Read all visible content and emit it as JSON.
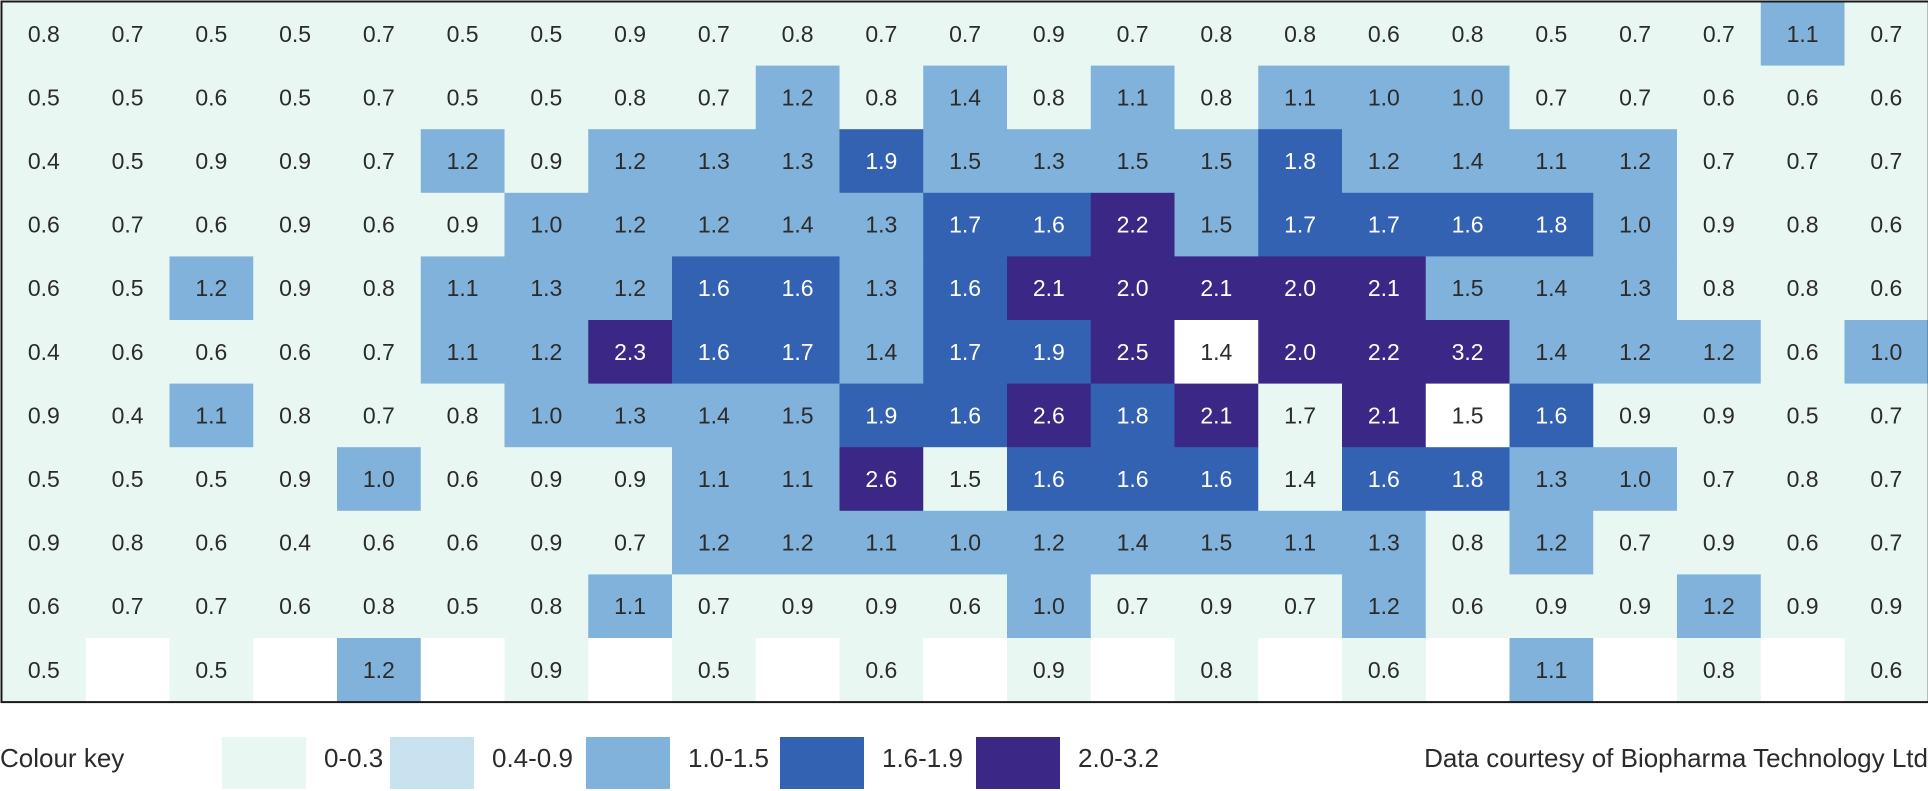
{
  "chart_data": {
    "type": "heatmap",
    "rows": [
      [
        "0.8",
        "0.7",
        "0.5",
        "0.5",
        "0.7",
        "0.5",
        "0.5",
        "0.9",
        "0.7",
        "0.8",
        "0.7",
        "0.7",
        "0.9",
        "0.7",
        "0.8",
        "0.8",
        "0.6",
        "0.8",
        "0.5",
        "0.7",
        "0.7",
        "1.1",
        "0.7"
      ],
      [
        "0.5",
        "0.5",
        "0.6",
        "0.5",
        "0.7",
        "0.5",
        "0.5",
        "0.8",
        "0.7",
        "1.2",
        "0.8",
        "1.4",
        "0.8",
        "1.1",
        "0.8",
        "1.1",
        "1.0",
        "1.0",
        "0.7",
        "0.7",
        "0.6",
        "0.6",
        "0.6"
      ],
      [
        "0.4",
        "0.5",
        "0.9",
        "0.9",
        "0.7",
        "1.2",
        "0.9",
        "1.2",
        "1.3",
        "1.3",
        "1.9",
        "1.5",
        "1.3",
        "1.5",
        "1.5",
        "1.8",
        "1.2",
        "1.4",
        "1.1",
        "1.2",
        "0.7",
        "0.7",
        "0.7"
      ],
      [
        "0.6",
        "0.7",
        "0.6",
        "0.9",
        "0.6",
        "0.9",
        "1.0",
        "1.2",
        "1.2",
        "1.4",
        "1.3",
        "1.7",
        "1.6",
        "2.2",
        "1.5",
        "1.7",
        "1.7",
        "1.6",
        "1.8",
        "1.0",
        "0.9",
        "0.8",
        "0.6"
      ],
      [
        "0.6",
        "0.5",
        "1.2",
        "0.9",
        "0.8",
        "1.1",
        "1.3",
        "1.2",
        "1.6",
        "1.6",
        "1.3",
        "1.6",
        "2.1",
        "2.0",
        "2.1",
        "2.0",
        "2.1",
        "1.5",
        "1.4",
        "1.3",
        "0.8",
        "0.8",
        "0.6"
      ],
      [
        "0.4",
        "0.6",
        "0.6",
        "0.6",
        "0.7",
        "1.1",
        "1.2",
        "2.3",
        "1.6",
        "1.7",
        "1.4",
        "1.7",
        "1.9",
        "2.5",
        "1.4",
        "2.0",
        "2.2",
        "3.2",
        "1.4",
        "1.2",
        "1.2",
        "0.6",
        "1.0"
      ],
      [
        "0.9",
        "0.4",
        "1.1",
        "0.8",
        "0.7",
        "0.8",
        "1.0",
        "1.3",
        "1.4",
        "1.5",
        "1.9",
        "1.6",
        "2.6",
        "1.8",
        "2.1",
        "1.7",
        "2.1",
        "1.5",
        "1.6",
        "0.9",
        "0.9",
        "0.5",
        "0.7"
      ],
      [
        "0.5",
        "0.5",
        "0.5",
        "0.9",
        "1.0",
        "0.6",
        "0.9",
        "0.9",
        "1.1",
        "1.1",
        "2.6",
        "1.5",
        "1.6",
        "1.6",
        "1.6",
        "1.4",
        "1.6",
        "1.8",
        "1.3",
        "1.0",
        "0.7",
        "0.8",
        "0.7"
      ],
      [
        "0.9",
        "0.8",
        "0.6",
        "0.4",
        "0.6",
        "0.6",
        "0.9",
        "0.7",
        "1.2",
        "1.2",
        "1.1",
        "1.0",
        "1.2",
        "1.4",
        "1.5",
        "1.1",
        "1.3",
        "0.8",
        "1.2",
        "0.7",
        "0.9",
        "0.6",
        "0.7"
      ],
      [
        "0.6",
        "0.7",
        "0.7",
        "0.6",
        "0.8",
        "0.5",
        "0.8",
        "1.1",
        "0.7",
        "0.9",
        "0.9",
        "0.6",
        "1.0",
        "0.7",
        "0.9",
        "0.7",
        "1.2",
        "0.6",
        "0.9",
        "0.9",
        "1.2",
        "0.9",
        "0.9"
      ],
      [
        "0.5",
        null,
        "0.5",
        null,
        "1.2",
        null,
        "0.9",
        null,
        "0.5",
        null,
        "0.6",
        null,
        "0.9",
        null,
        "0.8",
        null,
        "0.6",
        null,
        "1.1",
        null,
        "0.8",
        null,
        "0.6"
      ]
    ],
    "colour_key": {
      "title": "Colour key",
      "ranges": [
        {
          "label": "0-0.3",
          "min": 0.0,
          "max": 0.3,
          "color": "#e8f7f2"
        },
        {
          "label": "0.4-0.9",
          "min": 0.4,
          "max": 0.9,
          "color": "#e8f7f2"
        },
        {
          "label": "1.0-1.5",
          "min": 1.0,
          "max": 1.5,
          "color": "#80b2db"
        },
        {
          "label": "1.6-1.9",
          "min": 1.6,
          "max": 1.9,
          "color": "#3462b2"
        },
        {
          "label": "2.0-3.2",
          "min": 2.0,
          "max": 3.2,
          "color": "#3b2786"
        }
      ],
      "key_swatch_colors": [
        "#e8f7f2",
        "#c9e2f0",
        "#80b2db",
        "#3462b2",
        "#3b2786"
      ]
    },
    "overrides": [
      {
        "row": 3,
        "col": 13,
        "color": "#3b2786"
      },
      {
        "row": 5,
        "col": 14,
        "color": "#ffffff"
      },
      {
        "row": 6,
        "col": 15,
        "color": "#e8f7f2"
      },
      {
        "row": 6,
        "col": 17,
        "color": "#ffffff"
      },
      {
        "row": 7,
        "col": 10,
        "color": "#3b2786"
      },
      {
        "row": 7,
        "col": 11,
        "color": "#e8f7f2"
      },
      {
        "row": 7,
        "col": 15,
        "color": "#e8f7f2"
      }
    ],
    "credit": "Data courtesy of Biopharma Technology Ltd"
  }
}
